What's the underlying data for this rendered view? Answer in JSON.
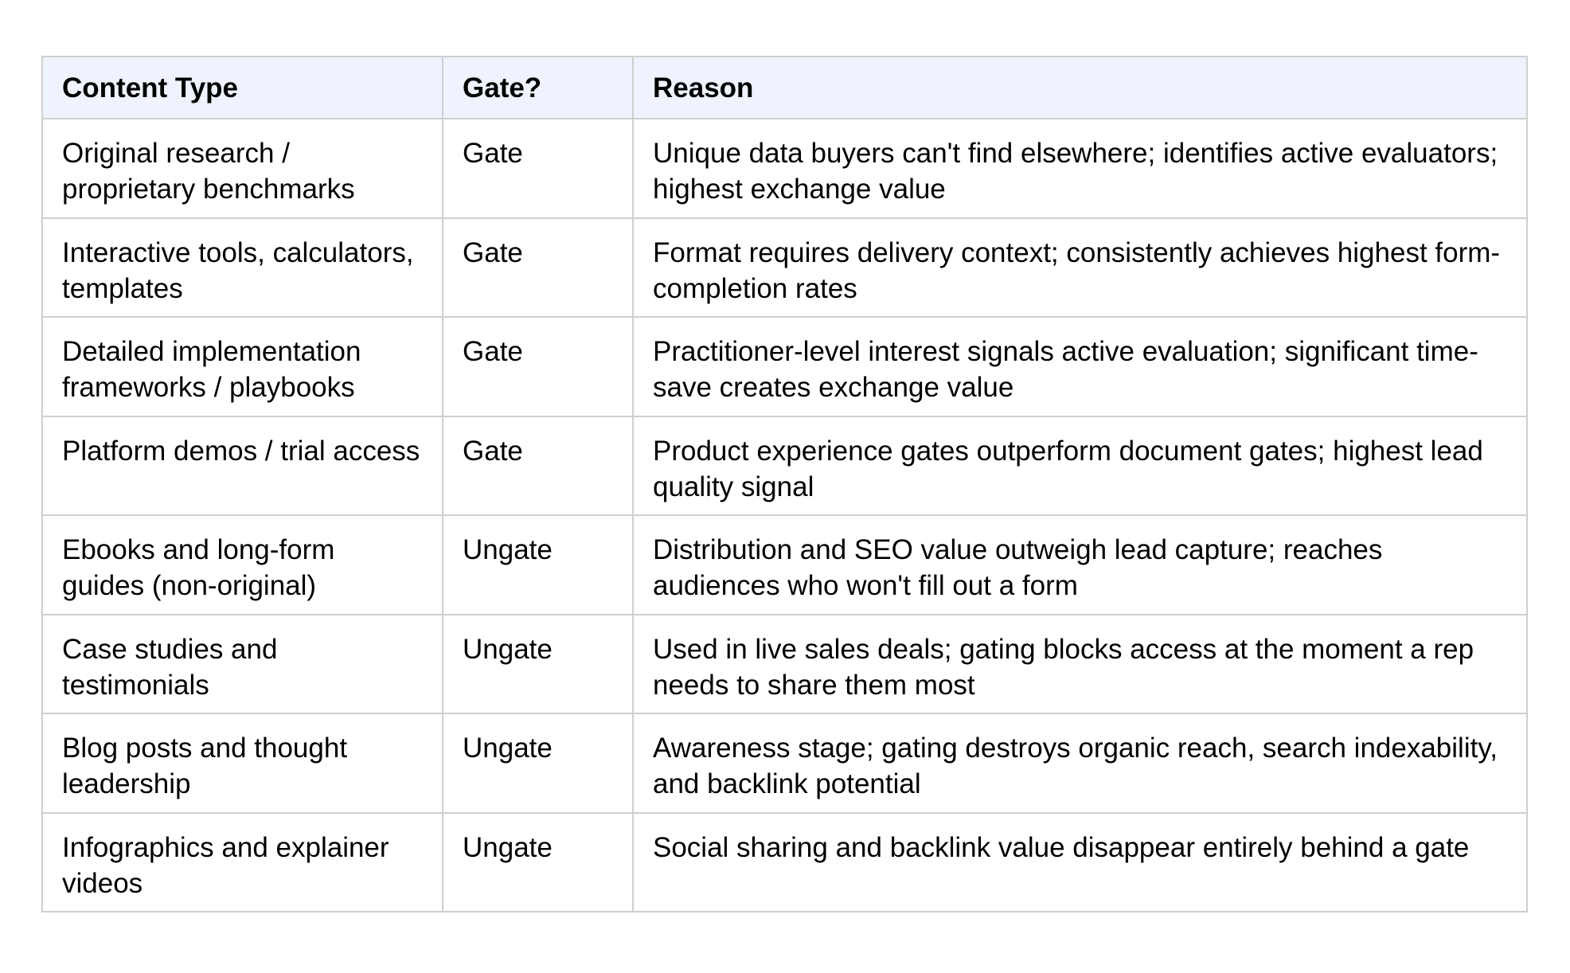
{
  "table": {
    "header": [
      "Content Type",
      "Gate?",
      "Reason"
    ],
    "rows": [
      [
        "Original research / proprietary benchmarks",
        "Gate",
        "Unique data buyers can't find elsewhere; identifies active evaluators; highest exchange value"
      ],
      [
        "Interactive tools, calculators, templates",
        "Gate",
        "Format requires delivery context; consistently achieves highest form-completion rates"
      ],
      [
        "Detailed implementation frameworks / playbooks",
        "Gate",
        "Practitioner-level interest signals active evaluation; significant time-save creates exchange value"
      ],
      [
        "Platform demos / trial access",
        "Gate",
        "Product experience gates outperform document gates; highest lead quality signal"
      ],
      [
        "Ebooks and long-form guides (non-original)",
        "Ungate",
        "Distribution and SEO value outweigh lead capture; reaches audiences who won't fill out a form"
      ],
      [
        "Case studies and testimonials",
        "Ungate",
        "Used in live sales deals; gating blocks access at the moment a rep needs to share them most"
      ],
      [
        "Blog posts and thought leadership",
        "Ungate",
        "Awareness stage; gating destroys organic reach, search indexability, and backlink potential"
      ],
      [
        "Infographics and explainer videos",
        "Ungate",
        "Social sharing and backlink value disappear entirely behind a gate"
      ]
    ]
  }
}
